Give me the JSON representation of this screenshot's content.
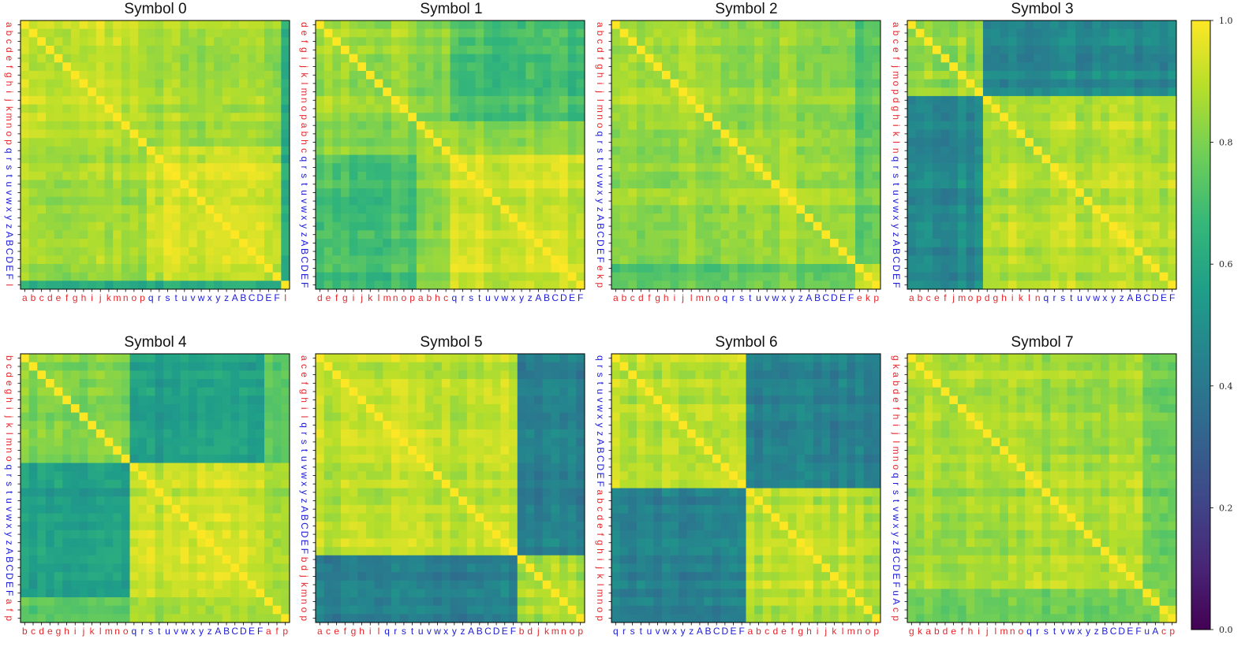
{
  "colors": {
    "group_a": "#e8262b",
    "group_b": "#1a1adb",
    "viridis": [
      "#440154",
      "#482878",
      "#3e4a89",
      "#31688e",
      "#26828e",
      "#1f9e89",
      "#35b779",
      "#6ece58",
      "#b5de2b",
      "#fde725"
    ]
  },
  "chart_data": [
    {
      "type": "heatmap",
      "title": "Symbol 0",
      "x_labels": [
        "a",
        "b",
        "c",
        "d",
        "e",
        "f",
        "g",
        "h",
        "i",
        "j",
        "k",
        "m",
        "n",
        "o",
        "p",
        "q",
        "r",
        "s",
        "t",
        "u",
        "v",
        "w",
        "x",
        "y",
        "z",
        "A",
        "B",
        "C",
        "D",
        "E",
        "F",
        "l"
      ],
      "y_labels": [
        "a",
        "b",
        "c",
        "d",
        "e",
        "f",
        "g",
        "h",
        "i",
        "j",
        "k",
        "m",
        "n",
        "o",
        "p",
        "q",
        "r",
        "s",
        "t",
        "u",
        "v",
        "w",
        "x",
        "y",
        "z",
        "A",
        "B",
        "C",
        "D",
        "E",
        "F",
        "l"
      ],
      "label_groups": [
        "a",
        "a",
        "a",
        "a",
        "a",
        "a",
        "a",
        "a",
        "a",
        "a",
        "a",
        "a",
        "a",
        "a",
        "a",
        "b",
        "b",
        "b",
        "b",
        "b",
        "b",
        "b",
        "b",
        "b",
        "b",
        "b",
        "b",
        "b",
        "b",
        "b",
        "b",
        "a"
      ],
      "blocks": [
        [
          0,
          15,
          0.91
        ],
        [
          15,
          31,
          0.93
        ],
        [
          31,
          32,
          0.97
        ]
      ],
      "cross": [
        [
          0,
          1,
          0.86
        ],
        [
          0,
          2,
          0.62
        ],
        [
          1,
          2,
          0.62
        ]
      ],
      "diagonal": 1.0,
      "vmin": 0.0,
      "vmax": 1.0
    },
    {
      "type": "heatmap",
      "title": "Symbol 1",
      "x_labels": [
        "d",
        "e",
        "f",
        "g",
        "i",
        "j",
        "k",
        "l",
        "m",
        "n",
        "o",
        "p",
        "a",
        "b",
        "h",
        "c",
        "q",
        "r",
        "s",
        "t",
        "u",
        "v",
        "w",
        "x",
        "y",
        "z",
        "A",
        "B",
        "C",
        "D",
        "E",
        "F"
      ],
      "y_labels": [
        "d",
        "e",
        "f",
        "g",
        "i",
        "j",
        "k",
        "l",
        "m",
        "n",
        "o",
        "p",
        "a",
        "b",
        "h",
        "c",
        "q",
        "r",
        "s",
        "t",
        "u",
        "v",
        "w",
        "x",
        "y",
        "z",
        "A",
        "B",
        "C",
        "D",
        "E",
        "F"
      ],
      "label_groups": [
        "a",
        "a",
        "a",
        "a",
        "a",
        "a",
        "a",
        "a",
        "a",
        "a",
        "a",
        "a",
        "a",
        "a",
        "a",
        "a",
        "b",
        "b",
        "b",
        "b",
        "b",
        "b",
        "b",
        "b",
        "b",
        "b",
        "b",
        "b",
        "b",
        "b",
        "b",
        "b"
      ],
      "blocks": [
        [
          0,
          12,
          0.86
        ],
        [
          12,
          16,
          0.88
        ],
        [
          16,
          32,
          0.92
        ]
      ],
      "cross": [
        [
          0,
          1,
          0.83
        ],
        [
          0,
          2,
          0.7
        ],
        [
          1,
          2,
          0.84
        ]
      ],
      "diagonal": 1.0,
      "vmin": 0.0,
      "vmax": 1.0
    },
    {
      "type": "heatmap",
      "title": "Symbol 2",
      "x_labels": [
        "a",
        "b",
        "c",
        "d",
        "f",
        "g",
        "h",
        "i",
        "j",
        "l",
        "m",
        "n",
        "o",
        "q",
        "r",
        "s",
        "t",
        "u",
        "v",
        "w",
        "x",
        "y",
        "z",
        "A",
        "B",
        "C",
        "D",
        "E",
        "F",
        "e",
        "k",
        "p"
      ],
      "y_labels": [
        "a",
        "b",
        "c",
        "d",
        "f",
        "g",
        "h",
        "i",
        "j",
        "l",
        "m",
        "n",
        "o",
        "q",
        "r",
        "s",
        "t",
        "u",
        "v",
        "w",
        "x",
        "y",
        "z",
        "A",
        "B",
        "C",
        "D",
        "E",
        "F",
        "e",
        "k",
        "p"
      ],
      "label_groups": [
        "a",
        "a",
        "a",
        "a",
        "a",
        "a",
        "a",
        "a",
        "a",
        "a",
        "a",
        "a",
        "a",
        "b",
        "b",
        "b",
        "b",
        "b",
        "b",
        "b",
        "b",
        "b",
        "b",
        "b",
        "b",
        "b",
        "b",
        "b",
        "b",
        "a",
        "a",
        "a"
      ],
      "blocks": [
        [
          0,
          13,
          0.87
        ],
        [
          13,
          29,
          0.88
        ],
        [
          29,
          32,
          0.88
        ]
      ],
      "cross": [
        [
          0,
          1,
          0.84
        ],
        [
          0,
          2,
          0.72
        ],
        [
          1,
          2,
          0.75
        ]
      ],
      "diagonal": 1.0,
      "vmin": 0.0,
      "vmax": 1.0
    },
    {
      "type": "heatmap",
      "title": "Symbol 3",
      "x_labels": [
        "a",
        "b",
        "c",
        "e",
        "f",
        "j",
        "m",
        "o",
        "p",
        "d",
        "g",
        "h",
        "i",
        "k",
        "l",
        "n",
        "q",
        "r",
        "s",
        "t",
        "u",
        "v",
        "w",
        "x",
        "y",
        "z",
        "A",
        "B",
        "C",
        "D",
        "E",
        "F"
      ],
      "y_labels": [
        "a",
        "b",
        "c",
        "e",
        "f",
        "j",
        "m",
        "o",
        "p",
        "d",
        "g",
        "h",
        "i",
        "k",
        "l",
        "n",
        "q",
        "r",
        "s",
        "t",
        "u",
        "v",
        "w",
        "x",
        "y",
        "z",
        "A",
        "B",
        "C",
        "D",
        "E",
        "F"
      ],
      "label_groups": [
        "a",
        "a",
        "a",
        "a",
        "a",
        "a",
        "a",
        "a",
        "a",
        "a",
        "a",
        "a",
        "a",
        "a",
        "a",
        "a",
        "b",
        "b",
        "b",
        "b",
        "b",
        "b",
        "b",
        "b",
        "b",
        "b",
        "b",
        "b",
        "b",
        "b",
        "b",
        "b"
      ],
      "blocks": [
        [
          0,
          9,
          0.85
        ],
        [
          9,
          32,
          0.9
        ]
      ],
      "cross": [
        [
          0,
          1,
          0.48
        ]
      ],
      "diagonal": 1.0,
      "vmin": 0.0,
      "vmax": 1.0
    },
    {
      "type": "heatmap",
      "title": "Symbol 4",
      "x_labels": [
        "b",
        "c",
        "d",
        "e",
        "g",
        "h",
        "i",
        "j",
        "k",
        "l",
        "m",
        "n",
        "o",
        "q",
        "r",
        "s",
        "t",
        "u",
        "v",
        "w",
        "x",
        "y",
        "z",
        "A",
        "B",
        "C",
        "D",
        "E",
        "F",
        "a",
        "f",
        "p"
      ],
      "y_labels": [
        "b",
        "c",
        "d",
        "e",
        "g",
        "h",
        "i",
        "j",
        "k",
        "l",
        "m",
        "n",
        "o",
        "q",
        "r",
        "s",
        "t",
        "u",
        "v",
        "w",
        "x",
        "y",
        "z",
        "A",
        "B",
        "C",
        "D",
        "E",
        "F",
        "a",
        "f",
        "p"
      ],
      "label_groups": [
        "a",
        "a",
        "a",
        "a",
        "a",
        "a",
        "a",
        "a",
        "a",
        "a",
        "a",
        "a",
        "a",
        "b",
        "b",
        "b",
        "b",
        "b",
        "b",
        "b",
        "b",
        "b",
        "b",
        "b",
        "b",
        "b",
        "b",
        "b",
        "b",
        "a",
        "a",
        "a"
      ],
      "blocks": [
        [
          0,
          13,
          0.82
        ],
        [
          13,
          29,
          0.9
        ],
        [
          29,
          32,
          0.86
        ]
      ],
      "cross": [
        [
          0,
          1,
          0.56
        ],
        [
          0,
          2,
          0.74
        ],
        [
          1,
          2,
          0.84
        ]
      ],
      "diagonal": 1.0,
      "vmin": 0.0,
      "vmax": 1.0
    },
    {
      "type": "heatmap",
      "title": "Symbol 5",
      "x_labels": [
        "a",
        "c",
        "e",
        "f",
        "g",
        "h",
        "i",
        "l",
        "q",
        "r",
        "s",
        "t",
        "u",
        "v",
        "w",
        "x",
        "y",
        "z",
        "A",
        "B",
        "C",
        "D",
        "E",
        "F",
        "b",
        "d",
        "j",
        "k",
        "m",
        "n",
        "o",
        "p"
      ],
      "y_labels": [
        "a",
        "c",
        "e",
        "f",
        "g",
        "h",
        "i",
        "l",
        "q",
        "r",
        "s",
        "t",
        "u",
        "v",
        "w",
        "x",
        "y",
        "z",
        "A",
        "B",
        "C",
        "D",
        "E",
        "F",
        "b",
        "d",
        "j",
        "k",
        "m",
        "n",
        "o",
        "p"
      ],
      "label_groups": [
        "a",
        "a",
        "a",
        "a",
        "a",
        "a",
        "a",
        "a",
        "b",
        "b",
        "b",
        "b",
        "b",
        "b",
        "b",
        "b",
        "b",
        "b",
        "b",
        "b",
        "b",
        "b",
        "b",
        "b",
        "a",
        "a",
        "a",
        "a",
        "a",
        "a",
        "a",
        "a"
      ],
      "blocks": [
        [
          0,
          24,
          0.9
        ],
        [
          24,
          32,
          0.87
        ]
      ],
      "cross": [
        [
          0,
          1,
          0.43
        ]
      ],
      "diagonal": 1.0,
      "vmin": 0.0,
      "vmax": 1.0
    },
    {
      "type": "heatmap",
      "title": "Symbol 6",
      "x_labels": [
        "q",
        "r",
        "s",
        "t",
        "u",
        "v",
        "w",
        "x",
        "y",
        "z",
        "A",
        "B",
        "C",
        "D",
        "E",
        "F",
        "a",
        "b",
        "c",
        "d",
        "e",
        "f",
        "g",
        "h",
        "i",
        "j",
        "k",
        "l",
        "m",
        "n",
        "o",
        "p"
      ],
      "y_labels": [
        "q",
        "r",
        "s",
        "t",
        "u",
        "v",
        "w",
        "x",
        "y",
        "z",
        "A",
        "B",
        "C",
        "D",
        "E",
        "F",
        "a",
        "b",
        "c",
        "d",
        "e",
        "f",
        "g",
        "h",
        "i",
        "j",
        "k",
        "l",
        "m",
        "n",
        "o",
        "p"
      ],
      "label_groups": [
        "b",
        "b",
        "b",
        "b",
        "b",
        "b",
        "b",
        "b",
        "b",
        "b",
        "b",
        "b",
        "b",
        "b",
        "b",
        "b",
        "a",
        "a",
        "a",
        "a",
        "a",
        "a",
        "a",
        "a",
        "a",
        "a",
        "a",
        "a",
        "a",
        "a",
        "a",
        "a"
      ],
      "blocks": [
        [
          0,
          16,
          0.9
        ],
        [
          16,
          32,
          0.89
        ]
      ],
      "cross": [
        [
          0,
          1,
          0.44
        ]
      ],
      "diagonal": 1.0,
      "vmin": 0.0,
      "vmax": 1.0
    },
    {
      "type": "heatmap",
      "title": "Symbol 7",
      "x_labels": [
        "g",
        "k",
        "a",
        "b",
        "d",
        "e",
        "f",
        "h",
        "i",
        "j",
        "l",
        "m",
        "n",
        "o",
        "q",
        "r",
        "s",
        "t",
        "v",
        "w",
        "x",
        "y",
        "z",
        "B",
        "C",
        "D",
        "E",
        "F",
        "u",
        "A",
        "c",
        "p"
      ],
      "y_labels": [
        "g",
        "k",
        "a",
        "b",
        "d",
        "e",
        "f",
        "h",
        "i",
        "j",
        "l",
        "m",
        "n",
        "o",
        "q",
        "r",
        "s",
        "t",
        "v",
        "w",
        "x",
        "y",
        "z",
        "B",
        "C",
        "D",
        "E",
        "F",
        "u",
        "A",
        "c",
        "p"
      ],
      "label_groups": [
        "a",
        "a",
        "a",
        "a",
        "a",
        "a",
        "a",
        "a",
        "a",
        "a",
        "a",
        "a",
        "a",
        "a",
        "b",
        "b",
        "b",
        "b",
        "b",
        "b",
        "b",
        "b",
        "b",
        "b",
        "b",
        "b",
        "b",
        "b",
        "b",
        "b",
        "a",
        "a"
      ],
      "blocks": [
        [
          0,
          14,
          0.88
        ],
        [
          14,
          28,
          0.89
        ],
        [
          28,
          30,
          0.91
        ],
        [
          30,
          32,
          0.9
        ]
      ],
      "cross": [
        [
          0,
          1,
          0.86
        ],
        [
          0,
          2,
          0.8
        ],
        [
          1,
          2,
          0.8
        ],
        [
          0,
          3,
          0.76
        ],
        [
          1,
          3,
          0.76
        ],
        [
          2,
          3,
          0.78
        ]
      ],
      "diagonal": 1.0,
      "vmin": 0.0,
      "vmax": 1.0
    }
  ],
  "colorbar": {
    "ticks": [
      "0.0",
      "0.2",
      "0.4",
      "0.6",
      "0.8",
      "1.0"
    ],
    "tick_values": [
      0.0,
      0.2,
      0.4,
      0.6,
      0.8,
      1.0
    ]
  }
}
